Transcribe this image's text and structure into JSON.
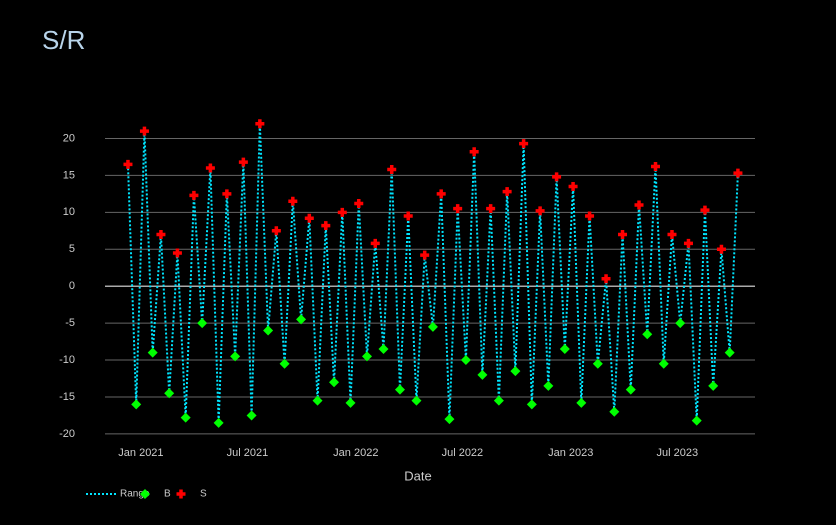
{
  "chart_data": {
    "type": "line",
    "title": "S/R",
    "x_label": "Date",
    "x": [
      "2020-12-10",
      "2020-12-24",
      "2021-01-07",
      "2021-01-21",
      "2021-02-04",
      "2021-02-18",
      "2021-03-04",
      "2021-03-18",
      "2021-04-01",
      "2021-04-15",
      "2021-04-29",
      "2021-05-13",
      "2021-05-27",
      "2021-06-10",
      "2021-06-24",
      "2021-07-08",
      "2021-07-22",
      "2021-08-05",
      "2021-08-19",
      "2021-09-02",
      "2021-09-16",
      "2021-09-30",
      "2021-10-14",
      "2021-10-28",
      "2021-11-11",
      "2021-11-25",
      "2021-12-09",
      "2021-12-23",
      "2022-01-06",
      "2022-01-20",
      "2022-02-03",
      "2022-02-17",
      "2022-03-03",
      "2022-03-17",
      "2022-03-31",
      "2022-04-14",
      "2022-04-28",
      "2022-05-12",
      "2022-05-26",
      "2022-06-09",
      "2022-06-23",
      "2022-07-07",
      "2022-07-21",
      "2022-08-04",
      "2022-08-18",
      "2022-09-01",
      "2022-09-15",
      "2022-09-29",
      "2022-10-13",
      "2022-10-27",
      "2022-11-10",
      "2022-11-24",
      "2022-12-08",
      "2022-12-22",
      "2023-01-05",
      "2023-01-19",
      "2023-02-02",
      "2023-02-16",
      "2023-03-02",
      "2023-03-16",
      "2023-03-30",
      "2023-04-13",
      "2023-04-27",
      "2023-05-11",
      "2023-05-25",
      "2023-06-08",
      "2023-06-22",
      "2023-07-06",
      "2023-07-20",
      "2023-08-03",
      "2023-08-17",
      "2023-08-31",
      "2023-09-14",
      "2023-09-28",
      "2023-10-12"
    ],
    "series": [
      {
        "name": "Range",
        "color": "#00e5ff",
        "values": [
          16.5,
          -16,
          21,
          -9,
          7,
          -14.5,
          4.5,
          -17.8,
          12.3,
          -5,
          16,
          -18.5,
          12.5,
          -9.5,
          16.8,
          -17.5,
          22,
          -6,
          7.5,
          -10.5,
          11.5,
          -4.5,
          9.2,
          -15.5,
          8.2,
          -13,
          10,
          -15.8,
          11.2,
          -9.5,
          5.8,
          -8.5,
          15.8,
          -14,
          9.5,
          -15.5,
          4.2,
          -5.5,
          12.5,
          -18,
          10.5,
          -10,
          18.2,
          -12,
          10.5,
          -15.5,
          12.8,
          -11.5,
          19.3,
          -16,
          10.2,
          -13.5,
          14.8,
          -8.5,
          13.5,
          -15.8,
          9.5,
          -10.5,
          1,
          -17,
          7,
          -14,
          11,
          -6.5,
          16.2,
          -10.5,
          7,
          -5,
          5.8,
          -18.2,
          10.3,
          -13.5,
          5,
          -9,
          15.3
        ]
      },
      {
        "name": "B",
        "color": "#00ff00",
        "values": [
          null,
          -16,
          null,
          -9,
          null,
          -14.5,
          null,
          -17.8,
          null,
          -5,
          null,
          -18.5,
          null,
          -9.5,
          null,
          -17.5,
          null,
          -6,
          null,
          -10.5,
          null,
          -4.5,
          null,
          -15.5,
          null,
          -13,
          null,
          -15.8,
          null,
          -9.5,
          null,
          -8.5,
          null,
          -14,
          null,
          -15.5,
          null,
          -5.5,
          null,
          -18,
          null,
          -10,
          null,
          -12,
          null,
          -15.5,
          null,
          -11.5,
          null,
          -16,
          null,
          -13.5,
          null,
          -8.5,
          null,
          -15.8,
          null,
          -10.5,
          null,
          -17,
          null,
          -14,
          null,
          -6.5,
          null,
          -10.5,
          null,
          -5,
          null,
          -18.2,
          null,
          -13.5,
          null,
          -9,
          null
        ]
      },
      {
        "name": "S",
        "color": "#ff0000",
        "values": [
          16.5,
          null,
          21,
          null,
          7,
          null,
          4.5,
          null,
          12.3,
          null,
          16,
          null,
          12.5,
          null,
          16.8,
          null,
          22,
          null,
          7.5,
          null,
          11.5,
          null,
          9.2,
          null,
          8.2,
          null,
          10,
          null,
          11.2,
          null,
          5.8,
          null,
          15.8,
          null,
          9.5,
          null,
          4.2,
          null,
          12.5,
          null,
          10.5,
          null,
          18.2,
          null,
          10.5,
          null,
          12.8,
          null,
          19.3,
          null,
          10.2,
          null,
          14.8,
          null,
          13.5,
          null,
          9.5,
          null,
          1,
          null,
          7,
          null,
          11,
          null,
          16.2,
          null,
          7,
          null,
          5.8,
          null,
          10.3,
          null,
          5,
          null,
          15.3
        ]
      }
    ],
    "xlim": [
      "2020-11-01",
      "2023-11-10"
    ],
    "xticks": [
      {
        "value": "2021-01-01",
        "label": "Jan 2021"
      },
      {
        "value": "2021-07-01",
        "label": "Jul 2021"
      },
      {
        "value": "2022-01-01",
        "label": "Jan 2022"
      },
      {
        "value": "2022-07-01",
        "label": "Jul 2022"
      },
      {
        "value": "2023-01-01",
        "label": "Jan 2023"
      },
      {
        "value": "2023-07-01",
        "label": "Jul 2023"
      }
    ],
    "ylim": [
      -21.5,
      22.5
    ],
    "yticks": [
      -20,
      -15,
      -10,
      -5,
      0,
      5,
      10,
      15,
      20
    ],
    "grid": true,
    "legend": "bottom-left"
  }
}
